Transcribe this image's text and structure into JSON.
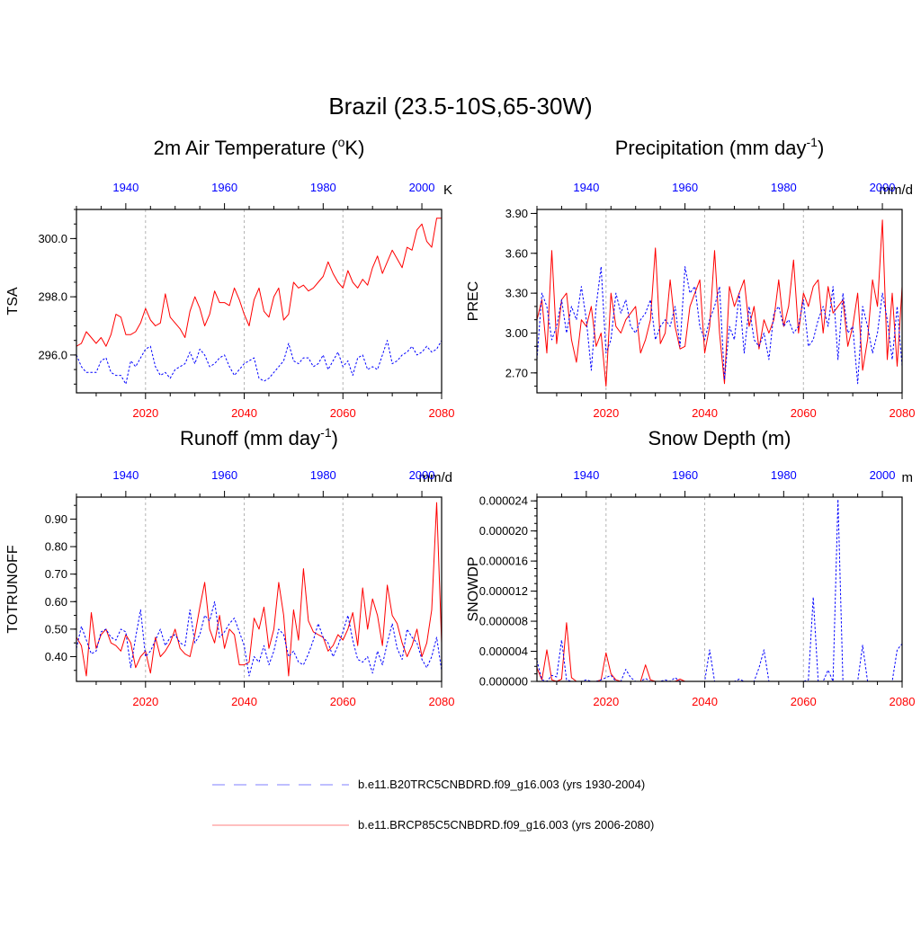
{
  "figure": {
    "title": "Brazil (23.5-10S,65-30W)",
    "hist_color": "#0000ff",
    "future_color": "#ff0000"
  },
  "legend": {
    "items": [
      {
        "label": "b.e11.B20TRC5CNBDRD.f09_g16.003 (yrs 1930-2004)",
        "style": "dashed",
        "color": "#7f7fff"
      },
      {
        "label": "b.e11.BRCP85C5CNBDRD.f09_g16.003 (yrs 2006-2080)",
        "style": "solid",
        "color": "#ff7f7f"
      }
    ]
  },
  "chart_data": [
    {
      "type": "line",
      "title_main": "2m Air Temperature (",
      "title_sup": "o",
      "title_end": "K)",
      "ylabel": "TSA",
      "units": "K",
      "bottom_axis": {
        "range": [
          2006,
          2080
        ],
        "ticks": [
          2020,
          2040,
          2060,
          2080
        ],
        "labels": [
          "2020",
          "2040",
          "2060",
          "2080"
        ]
      },
      "top_axis": {
        "range": [
          1930,
          2004
        ],
        "ticks": [
          1940,
          1960,
          1980,
          2000
        ],
        "labels": [
          "1940",
          "1960",
          "1980",
          "2000"
        ]
      },
      "ylim": [
        294.7,
        301.0
      ],
      "yticks": [
        296.0,
        298.0,
        300.0
      ],
      "ytick_labels": [
        "296.0",
        "298.0",
        "300.0"
      ],
      "yminor": 0.5,
      "series": [
        {
          "name": "b.e11.BRCP85C5CNBDRD.f09_g16.003 (yrs 2006-2080)",
          "style": "solid",
          "x_start": 2006,
          "values": [
            296.3,
            296.4,
            296.8,
            296.6,
            296.4,
            296.6,
            296.3,
            296.7,
            297.4,
            297.3,
            296.7,
            296.7,
            296.8,
            297.1,
            297.6,
            297.2,
            297.0,
            297.1,
            298.1,
            297.3,
            297.1,
            296.9,
            296.6,
            297.5,
            298.0,
            297.6,
            297.0,
            297.4,
            298.2,
            297.8,
            297.8,
            297.7,
            298.3,
            297.9,
            297.4,
            297.0,
            297.9,
            298.3,
            297.5,
            297.3,
            298.0,
            298.3,
            297.2,
            297.4,
            298.5,
            298.3,
            298.4,
            298.2,
            298.3,
            298.5,
            298.7,
            299.2,
            298.8,
            298.5,
            298.3,
            298.9,
            298.5,
            298.3,
            298.6,
            298.4,
            299.0,
            299.4,
            298.8,
            299.2,
            299.6,
            299.3,
            299.0,
            299.7,
            299.6,
            300.3,
            300.5,
            299.9,
            299.7,
            300.7,
            300.7
          ]
        },
        {
          "name": "b.e11.B20TRC5CNBDRD.f09_g16.003 (yrs 1930-2004)",
          "style": "dashed",
          "x_start": 1930,
          "values": [
            296.0,
            295.6,
            295.4,
            295.4,
            295.4,
            295.8,
            295.9,
            295.4,
            295.3,
            295.3,
            295.0,
            295.8,
            295.6,
            295.9,
            296.2,
            296.3,
            295.6,
            295.3,
            295.4,
            295.2,
            295.5,
            295.6,
            295.7,
            296.1,
            295.7,
            296.2,
            296.0,
            295.6,
            295.7,
            295.9,
            296.0,
            295.6,
            295.3,
            295.5,
            295.7,
            295.8,
            295.9,
            295.2,
            295.1,
            295.2,
            295.4,
            295.6,
            295.8,
            296.4,
            295.8,
            295.7,
            295.9,
            295.9,
            295.6,
            295.7,
            296.0,
            295.5,
            295.8,
            296.1,
            295.6,
            295.8,
            295.3,
            295.9,
            296.0,
            295.5,
            295.6,
            295.5,
            296.0,
            296.5,
            295.7,
            295.8,
            296.0,
            296.1,
            296.3,
            296.0,
            296.1,
            296.3,
            296.1,
            296.2,
            296.5
          ]
        }
      ]
    },
    {
      "type": "line",
      "title_main": "Precipitation (mm day",
      "title_sup": "-1",
      "title_end": ")",
      "ylabel": "PREC",
      "units": "mm/d",
      "bottom_axis": {
        "range": [
          2006,
          2080
        ],
        "ticks": [
          2020,
          2040,
          2060,
          2080
        ],
        "labels": [
          "2020",
          "2040",
          "2060",
          "2080"
        ]
      },
      "top_axis": {
        "range": [
          1930,
          2004
        ],
        "ticks": [
          1940,
          1960,
          1980,
          2000
        ],
        "labels": [
          "1940",
          "1960",
          "1980",
          "2000"
        ]
      },
      "ylim": [
        2.55,
        3.93
      ],
      "yticks": [
        2.7,
        3.0,
        3.3,
        3.6,
        3.9
      ],
      "ytick_labels": [
        "2.70",
        "3.00",
        "3.30",
        "3.60",
        "3.90"
      ],
      "yminor": 0.1,
      "series": [
        {
          "name": "b.e11.BRCP85C5CNBDRD.f09_g16.003 (yrs 2006-2080)",
          "style": "solid",
          "x_start": 2006,
          "values": [
            3.1,
            3.25,
            2.85,
            3.62,
            2.92,
            3.25,
            3.3,
            2.95,
            2.78,
            3.1,
            3.05,
            3.2,
            2.9,
            3.0,
            2.6,
            3.3,
            3.05,
            3.0,
            3.1,
            3.15,
            3.2,
            2.85,
            2.95,
            3.1,
            3.64,
            2.92,
            3.0,
            3.4,
            3.05,
            2.88,
            2.9,
            3.2,
            3.3,
            3.4,
            2.85,
            3.05,
            3.62,
            3.0,
            2.62,
            3.35,
            3.2,
            3.3,
            3.4,
            3.05,
            3.2,
            2.88,
            3.1,
            3.0,
            3.1,
            3.4,
            3.05,
            3.2,
            3.55,
            3.0,
            3.3,
            3.2,
            3.35,
            3.4,
            3.0,
            3.35,
            3.15,
            3.2,
            3.25,
            2.9,
            3.05,
            3.3,
            2.72,
            2.95,
            3.4,
            3.2,
            3.85,
            2.8,
            3.3,
            2.75,
            3.35
          ]
        },
        {
          "name": "b.e11.B20TRC5CNBDRD.f09_g16.003 (yrs 1930-2004)",
          "style": "dashed",
          "x_start": 1930,
          "values": [
            2.8,
            3.3,
            3.2,
            2.95,
            3.05,
            3.25,
            3.0,
            3.2,
            3.1,
            3.35,
            3.1,
            2.72,
            3.2,
            3.5,
            2.85,
            2.95,
            3.3,
            3.15,
            3.25,
            3.05,
            3.0,
            3.1,
            3.15,
            3.25,
            2.95,
            3.05,
            3.1,
            3.05,
            3.2,
            2.9,
            3.5,
            3.3,
            3.35,
            3.05,
            2.95,
            3.1,
            3.2,
            3.35,
            2.65,
            3.05,
            2.95,
            3.3,
            2.85,
            3.2,
            2.95,
            2.9,
            3.0,
            2.8,
            3.15,
            3.2,
            3.05,
            3.1,
            3.0,
            3.05,
            3.25,
            2.9,
            2.95,
            3.1,
            3.2,
            3.05,
            3.35,
            2.8,
            3.3,
            3.0,
            3.05,
            2.62,
            3.2,
            3.05,
            2.85,
            3.0,
            3.3,
            3.1,
            2.8,
            3.2,
            2.75
          ]
        }
      ]
    },
    {
      "type": "line",
      "title_main": "Runoff (mm day",
      "title_sup": "-1",
      "title_end": ")",
      "ylabel": "TOTRUNOFF",
      "units": "mm/d",
      "bottom_axis": {
        "range": [
          2006,
          2080
        ],
        "ticks": [
          2020,
          2040,
          2060,
          2080
        ],
        "labels": [
          "2020",
          "2040",
          "2060",
          "2080"
        ]
      },
      "top_axis": {
        "range": [
          1930,
          2004
        ],
        "ticks": [
          1940,
          1960,
          1980,
          2000
        ],
        "labels": [
          "1940",
          "1960",
          "1980",
          "2000"
        ]
      },
      "ylim": [
        0.31,
        0.98
      ],
      "yticks": [
        0.4,
        0.5,
        0.6,
        0.7,
        0.8,
        0.9
      ],
      "ytick_labels": [
        "0.40",
        "0.50",
        "0.60",
        "0.70",
        "0.80",
        "0.90"
      ],
      "yminor": 0.05,
      "series": [
        {
          "name": "b.e11.BRCP85C5CNBDRD.f09_g16.003 (yrs 2006-2080)",
          "style": "solid",
          "x_start": 2006,
          "values": [
            0.47,
            0.44,
            0.33,
            0.56,
            0.43,
            0.48,
            0.5,
            0.45,
            0.44,
            0.42,
            0.48,
            0.45,
            0.36,
            0.4,
            0.42,
            0.34,
            0.47,
            0.4,
            0.42,
            0.45,
            0.5,
            0.43,
            0.41,
            0.4,
            0.48,
            0.58,
            0.67,
            0.5,
            0.45,
            0.55,
            0.43,
            0.5,
            0.48,
            0.37,
            0.37,
            0.38,
            0.54,
            0.5,
            0.58,
            0.43,
            0.5,
            0.67,
            0.55,
            0.33,
            0.57,
            0.46,
            0.72,
            0.53,
            0.49,
            0.48,
            0.47,
            0.42,
            0.44,
            0.48,
            0.46,
            0.5,
            0.56,
            0.44,
            0.65,
            0.5,
            0.61,
            0.55,
            0.44,
            0.66,
            0.55,
            0.52,
            0.45,
            0.4,
            0.44,
            0.5,
            0.4,
            0.45,
            0.57,
            0.96,
            0.45
          ]
        },
        {
          "name": "b.e11.B20TRC5CNBDRD.f09_g16.003 (yrs 1930-2004)",
          "style": "dashed",
          "x_start": 1930,
          "values": [
            0.43,
            0.51,
            0.46,
            0.41,
            0.42,
            0.49,
            0.5,
            0.47,
            0.46,
            0.5,
            0.49,
            0.36,
            0.47,
            0.57,
            0.4,
            0.42,
            0.46,
            0.5,
            0.44,
            0.47,
            0.48,
            0.45,
            0.44,
            0.57,
            0.45,
            0.48,
            0.55,
            0.53,
            0.6,
            0.47,
            0.49,
            0.52,
            0.54,
            0.49,
            0.44,
            0.33,
            0.4,
            0.38,
            0.44,
            0.37,
            0.42,
            0.5,
            0.48,
            0.4,
            0.42,
            0.38,
            0.37,
            0.41,
            0.46,
            0.52,
            0.47,
            0.45,
            0.4,
            0.44,
            0.49,
            0.55,
            0.46,
            0.39,
            0.38,
            0.4,
            0.34,
            0.42,
            0.37,
            0.45,
            0.52,
            0.43,
            0.39,
            0.5,
            0.47,
            0.45,
            0.39,
            0.36,
            0.4,
            0.47,
            0.35
          ]
        }
      ]
    },
    {
      "type": "line",
      "title_main": "Snow Depth (m)",
      "title_sup": "",
      "title_end": "",
      "ylabel": "SNOWDP",
      "units": "m",
      "bottom_axis": {
        "range": [
          2006,
          2080
        ],
        "ticks": [
          2020,
          2040,
          2060,
          2080
        ],
        "labels": [
          "2020",
          "2040",
          "2060",
          "2080"
        ]
      },
      "top_axis": {
        "range": [
          1930,
          2004
        ],
        "ticks": [
          1940,
          1960,
          1980,
          2000
        ],
        "labels": [
          "1940",
          "1960",
          "1980",
          "2000"
        ]
      },
      "ylim": [
        0.0,
        2.45e-05
      ],
      "yticks": [
        0.0,
        4e-06,
        8e-06,
        1.2e-05,
        1.6e-05,
        2e-05,
        2.4e-05
      ],
      "ytick_labels": [
        "0.000000",
        "0.000004",
        "0.000008",
        "0.000012",
        "0.000016",
        "0.000020",
        "0.000024"
      ],
      "yminor": 1e-06,
      "series": [
        {
          "name": "b.e11.BRCP85C5CNBDRD.f09_g16.003 (yrs 2006-2080)",
          "style": "solid",
          "x_start": 2006,
          "values": [
            1.8e-06,
            2e-07,
            4.2e-06,
            2e-07,
            0.0,
            3e-07,
            7.8e-06,
            5e-07,
            0.0,
            0.0,
            0.0,
            0.0,
            0.0,
            2e-07,
            3.8e-06,
            1e-06,
            2e-07,
            0.0,
            0.0,
            0.0,
            0.0,
            0.0,
            2.2e-06,
            2e-07,
            0.0,
            0.0,
            0.0,
            0.0,
            0.0,
            3e-07,
            0.0,
            0.0,
            0.0,
            0.0,
            0.0,
            0.0,
            0.0,
            0.0,
            0.0,
            0.0,
            0.0,
            0.0,
            0.0,
            0.0,
            0.0,
            0.0,
            0.0,
            0.0,
            0.0,
            0.0,
            0.0,
            0.0,
            0.0,
            0.0,
            0.0,
            0.0,
            0.0,
            0.0,
            0.0,
            0.0,
            0.0,
            0.0,
            0.0,
            0.0,
            0.0,
            0.0,
            0.0,
            0.0,
            0.0,
            0.0,
            0.0,
            0.0,
            0.0,
            0.0,
            0.0
          ]
        },
        {
          "name": "b.e11.B20TRC5CNBDRD.f09_g16.003 (yrs 1930-2004)",
          "style": "dashed",
          "x_start": 1930,
          "values": [
            2.8e-06,
            2e-07,
            0.0,
            8e-07,
            6e-07,
            5.5e-06,
            2e-07,
            0.0,
            0.0,
            0.0,
            2e-07,
            0.0,
            0.0,
            2e-07,
            5e-07,
            8e-07,
            0.0,
            0.0,
            1.6e-06,
            5e-07,
            0.0,
            0.0,
            4e-07,
            0.0,
            0.0,
            0.0,
            2e-07,
            0.0,
            5e-07,
            0.0,
            0.0,
            0.0,
            0.0,
            0.0,
            0.0,
            4.2e-06,
            0.0,
            0.0,
            0.0,
            0.0,
            0.0,
            3e-07,
            0.0,
            0.0,
            0.0,
            1.8e-06,
            4.2e-06,
            0.0,
            0.0,
            0.0,
            0.0,
            0.0,
            0.0,
            0.0,
            0.0,
            2e-07,
            1.12e-05,
            0.0,
            0.0,
            1.5e-06,
            0.0,
            2.42e-05,
            0.0,
            0.0,
            0.0,
            0.0,
            4.8e-06,
            0.0,
            0.0,
            0.0,
            0.0,
            0.0,
            0.0,
            4.2e-06,
            5e-06
          ]
        }
      ]
    }
  ]
}
